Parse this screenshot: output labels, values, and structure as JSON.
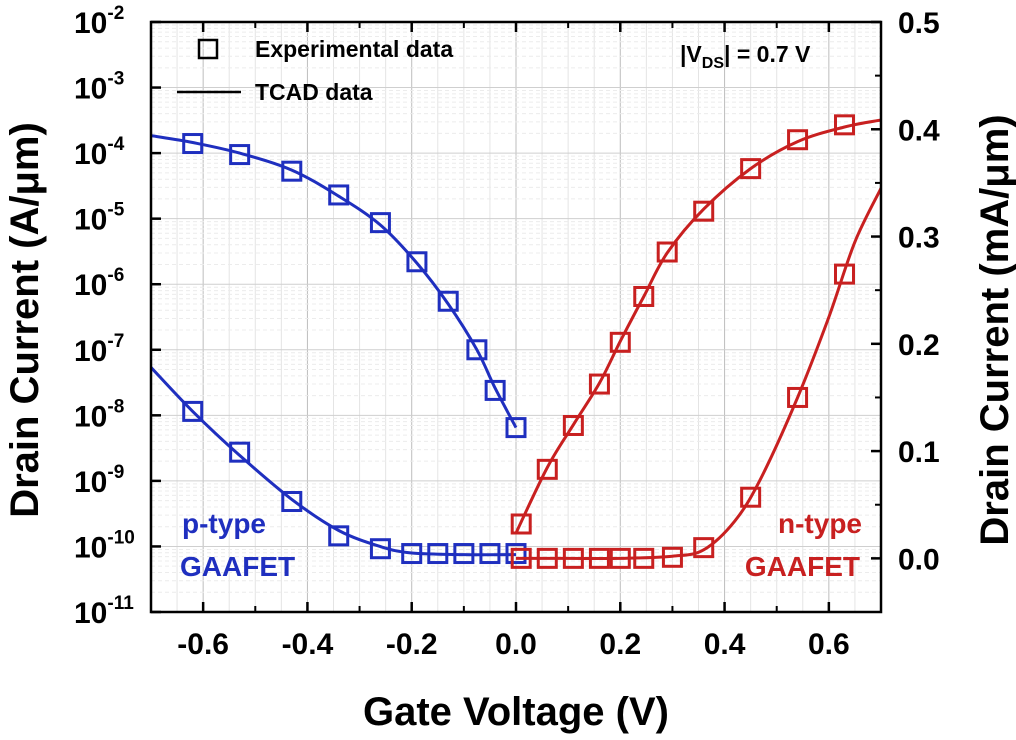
{
  "chart_data": {
    "type": "line",
    "annotation": {
      "pre": "|V",
      "sub": "DS",
      "post": "| = 0.7 V"
    },
    "xlabel": "Gate Voltage (V)",
    "ylabel_left": "Drain Current (A/μm)",
    "ylabel_right": "Drain Current (mA/μm)",
    "xlim": [
      -0.7,
      0.7
    ],
    "x_ticks": [
      -0.6,
      -0.4,
      -0.2,
      0.0,
      0.2,
      0.4,
      0.6
    ],
    "x_tick_labels": [
      "-0.6",
      "-0.4",
      "-0.2",
      "0.0",
      "0.2",
      "0.4",
      "0.6"
    ],
    "y_left_scale": "log",
    "y_left_exp_range": [
      -11,
      -2
    ],
    "y_left_exponents": [
      -2,
      -3,
      -4,
      -5,
      -6,
      -7,
      -8,
      -9,
      -10,
      -11
    ],
    "y_left_tick_base": "10",
    "y_right_scale": "linear",
    "y_right_lim": [
      -0.05,
      0.5
    ],
    "y_right_ticks": [
      0.0,
      0.1,
      0.2,
      0.3,
      0.4,
      0.5
    ],
    "y_right_tick_labels": [
      "0.0",
      "0.1",
      "0.2",
      "0.3",
      "0.4",
      "0.5"
    ],
    "grid": true,
    "legend": {
      "position": "top-left",
      "items": [
        {
          "label": "Experimental data",
          "marker": "open-square"
        },
        {
          "label": "TCAD data",
          "marker": "line"
        }
      ]
    },
    "type_labels": [
      {
        "line1": "p-type",
        "line2": "GAAFET",
        "color": "#1f2fbf"
      },
      {
        "line1": "n-type",
        "line2": "GAAFET",
        "color": "#c82020"
      }
    ],
    "series": [
      {
        "color": "#1f2fbf",
        "axis": "left-log",
        "exp_x": [
          -0.62,
          -0.53,
          -0.43,
          -0.34,
          -0.26,
          -0.19,
          -0.13,
          -0.075,
          -0.04,
          0.0
        ],
        "exp_y": [
          0.00014,
          9.5e-05,
          5.3e-05,
          2.3e-05,
          8.7e-06,
          2.2e-06,
          5.5e-07,
          1e-07,
          2.4e-08,
          6.5e-09
        ],
        "tcad_x": [
          -0.7,
          -0.62,
          -0.53,
          -0.43,
          -0.34,
          -0.26,
          -0.19,
          -0.13,
          -0.075,
          -0.04,
          0.0
        ],
        "tcad_y": [
          0.000185,
          0.000145,
          0.0001,
          5.5e-05,
          2.2e-05,
          8e-06,
          2.1e-06,
          5e-07,
          1e-07,
          2.6e-08,
          6.5e-09
        ]
      },
      {
        "color": "#1f2fbf",
        "axis": "right-linear",
        "exp_x": [
          -0.62,
          -0.53,
          -0.43,
          -0.34,
          -0.26,
          -0.2,
          -0.15,
          -0.1,
          -0.05,
          0.0
        ],
        "exp_y": [
          0.137,
          0.099,
          0.053,
          0.021,
          0.009,
          0.0045,
          0.0045,
          0.0045,
          0.0045,
          0.0045
        ],
        "tcad_x": [
          -0.7,
          -0.62,
          -0.53,
          -0.43,
          -0.34,
          -0.26,
          -0.2,
          -0.1,
          0.0
        ],
        "tcad_y": [
          0.178,
          0.137,
          0.096,
          0.055,
          0.026,
          0.011,
          0.005,
          0.0035,
          0.0035
        ]
      },
      {
        "color": "#c82020",
        "axis": "left-log",
        "exp_x": [
          0.01,
          0.06,
          0.11,
          0.16,
          0.2,
          0.245,
          0.29,
          0.36,
          0.45,
          0.54,
          0.63
        ],
        "exp_y": [
          2.2e-10,
          1.5e-09,
          7e-09,
          3e-08,
          1.3e-07,
          6.5e-07,
          3.1e-06,
          1.3e-05,
          5.8e-05,
          0.00016,
          0.00027
        ],
        "tcad_x": [
          0.0,
          0.06,
          0.11,
          0.16,
          0.2,
          0.245,
          0.29,
          0.36,
          0.45,
          0.54,
          0.63,
          0.7
        ],
        "tcad_y": [
          1.6e-10,
          1.6e-09,
          7.2e-09,
          3.1e-08,
          1.35e-07,
          6.5e-07,
          3e-06,
          1.4e-05,
          5.8e-05,
          0.00015,
          0.00025,
          0.00032
        ]
      },
      {
        "color": "#c82020",
        "axis": "right-linear",
        "exp_x": [
          0.01,
          0.06,
          0.11,
          0.16,
          0.2,
          0.245,
          0.3,
          0.36,
          0.45,
          0.54,
          0.63
        ],
        "exp_y": [
          0.0,
          0.0,
          0.0,
          0.0,
          0.0,
          0.0,
          0.001,
          0.01,
          0.057,
          0.15,
          0.265
        ],
        "tcad_x": [
          0.0,
          0.1,
          0.2,
          0.3,
          0.36,
          0.42,
          0.47,
          0.54,
          0.6,
          0.65,
          0.7
        ],
        "tcad_y": [
          0.0,
          0.0,
          0.0,
          0.002,
          0.008,
          0.035,
          0.075,
          0.15,
          0.225,
          0.295,
          0.345
        ]
      }
    ]
  }
}
